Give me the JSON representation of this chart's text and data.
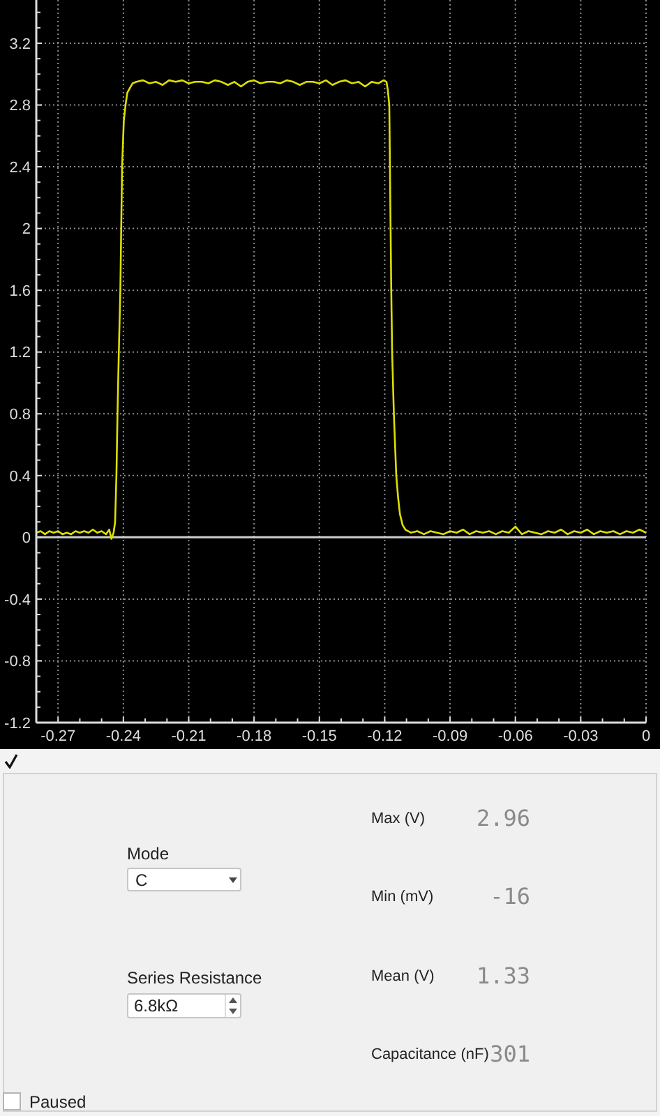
{
  "chart_data": [
    {
      "type": "line",
      "x": [
        -0.28,
        -0.278,
        -0.276,
        -0.274,
        -0.272,
        -0.27,
        -0.268,
        -0.266,
        -0.264,
        -0.262,
        -0.26,
        -0.258,
        -0.256,
        -0.254,
        -0.252,
        -0.25,
        -0.248,
        -0.2465,
        -0.2455,
        -0.2445,
        -0.2438,
        -0.2432,
        -0.2427,
        -0.2421,
        -0.2414,
        -0.241,
        -0.2406,
        -0.2398,
        -0.239,
        -0.2382,
        -0.237,
        -0.2358,
        -0.234,
        -0.231,
        -0.228,
        -0.225,
        -0.222,
        -0.219,
        -0.216,
        -0.213,
        -0.21,
        -0.207,
        -0.204,
        -0.201,
        -0.198,
        -0.195,
        -0.192,
        -0.189,
        -0.186,
        -0.183,
        -0.18,
        -0.177,
        -0.174,
        -0.171,
        -0.168,
        -0.165,
        -0.162,
        -0.159,
        -0.156,
        -0.153,
        -0.15,
        -0.147,
        -0.144,
        -0.141,
        -0.138,
        -0.135,
        -0.132,
        -0.129,
        -0.126,
        -0.123,
        -0.1205,
        -0.1192,
        -0.1186,
        -0.1179,
        -0.1176,
        -0.1173,
        -0.117,
        -0.1166,
        -0.1158,
        -0.1147,
        -0.1138,
        -0.113,
        -0.1118,
        -0.1105,
        -0.108,
        -0.105,
        -0.102,
        -0.099,
        -0.096,
        -0.093,
        -0.09,
        -0.087,
        -0.084,
        -0.081,
        -0.078,
        -0.075,
        -0.072,
        -0.069,
        -0.066,
        -0.063,
        -0.06,
        -0.057,
        -0.054,
        -0.051,
        -0.048,
        -0.045,
        -0.042,
        -0.039,
        -0.036,
        -0.033,
        -0.03,
        -0.027,
        -0.024,
        -0.021,
        -0.018,
        -0.015,
        -0.012,
        -0.009,
        -0.006,
        -0.003,
        0
      ],
      "series": [
        {
          "color": "#dede00",
          "values": [
            0.03,
            0.04,
            0.02,
            0.04,
            0.03,
            0.04,
            0.02,
            0.03,
            0.02,
            0.04,
            0.03,
            0.04,
            0.03,
            0.05,
            0.03,
            0.04,
            0.02,
            0.05,
            -0.01,
            0.03,
            0.1,
            0.4,
            0.8,
            1.2,
            1.6,
            2,
            2.4,
            2.7,
            2.8,
            2.88,
            2.91,
            2.94,
            2.95,
            2.96,
            2.94,
            2.95,
            2.93,
            2.96,
            2.95,
            2.96,
            2.94,
            2.95,
            2.95,
            2.94,
            2.96,
            2.95,
            2.93,
            2.95,
            2.92,
            2.95,
            2.96,
            2.94,
            2.95,
            2.95,
            2.94,
            2.96,
            2.95,
            2.93,
            2.95,
            2.95,
            2.94,
            2.96,
            2.93,
            2.95,
            2.96,
            2.94,
            2.95,
            2.92,
            2.95,
            2.94,
            2.96,
            2.95,
            2.9,
            2.8,
            2.4,
            2,
            1.6,
            1.2,
            0.8,
            0.4,
            0.25,
            0.15,
            0.08,
            0.05,
            0.03,
            0.04,
            0.02,
            0.04,
            0.03,
            0.02,
            0.04,
            0.03,
            0.05,
            0.02,
            0.04,
            0.03,
            0.04,
            0.02,
            0.04,
            0.03,
            0.07,
            0.02,
            0.04,
            0.03,
            0.02,
            0.04,
            0.03,
            0.05,
            0.02,
            0.04,
            0.03,
            0.05,
            0.02,
            0.04,
            0.03,
            0.04,
            0.02,
            0.04,
            0.03,
            0.05,
            0.03
          ]
        }
      ],
      "xlim": [
        -0.28,
        0
      ],
      "ylim": [
        -1.2,
        3.48
      ],
      "xticks": [
        -0.27,
        {
          "value": -0.26,
          "label": null
        },
        {
          "value": -0.25,
          "label": null
        },
        -0.24,
        {
          "value": -0.23,
          "label": null
        },
        {
          "value": -0.22,
          "label": null
        },
        -0.21,
        {
          "value": -0.2,
          "label": null
        },
        {
          "value": -0.19,
          "label": null
        },
        -0.18,
        {
          "value": -0.17,
          "label": null
        },
        {
          "value": -0.16,
          "label": null
        },
        -0.15,
        {
          "value": -0.14,
          "label": null
        },
        {
          "value": -0.13,
          "label": null
        },
        -0.12,
        {
          "value": -0.11,
          "label": null
        },
        {
          "value": -0.1,
          "label": null
        },
        -0.09,
        {
          "value": -0.08,
          "label": null
        },
        {
          "value": -0.07,
          "label": null
        },
        -0.06,
        {
          "value": -0.05,
          "label": null
        },
        {
          "value": -0.04,
          "label": null
        },
        -0.03,
        {
          "value": -0.02,
          "label": null
        },
        {
          "value": -0.01,
          "label": null
        },
        0
      ],
      "yticks": [
        -1.2,
        {
          "value": -1.1,
          "label": null
        },
        {
          "value": -1,
          "label": null
        },
        {
          "value": -0.9,
          "label": null
        },
        -0.8,
        {
          "value": -0.7,
          "label": null
        },
        {
          "value": -0.6,
          "label": null
        },
        {
          "value": -0.5,
          "label": null
        },
        -0.4,
        {
          "value": -0.3,
          "label": null
        },
        {
          "value": -0.2,
          "label": null
        },
        {
          "value": -0.1,
          "label": null
        },
        0,
        {
          "value": 0.1,
          "label": null
        },
        {
          "value": 0.2,
          "label": null
        },
        {
          "value": 0.3,
          "label": null
        },
        0.4,
        {
          "value": 0.5,
          "label": null
        },
        {
          "value": 0.6,
          "label": null
        },
        {
          "value": 0.7,
          "label": null
        },
        0.8,
        {
          "value": 0.9,
          "label": null
        },
        {
          "value": 1,
          "label": null
        },
        {
          "value": 1.1,
          "label": null
        },
        1.2,
        {
          "value": 1.3,
          "label": null
        },
        {
          "value": 1.4,
          "label": null
        },
        {
          "value": 1.5,
          "label": null
        },
        1.6,
        {
          "value": 1.7,
          "label": null
        },
        {
          "value": 1.8,
          "label": null
        },
        {
          "value": 1.9,
          "label": null
        },
        2,
        {
          "value": 2.1,
          "label": null
        },
        {
          "value": 2.2,
          "label": null
        },
        {
          "value": 2.3,
          "label": null
        },
        2.4,
        {
          "value": 2.5,
          "label": null
        },
        {
          "value": 2.6,
          "label": null
        },
        {
          "value": 2.7,
          "label": null
        },
        2.8,
        {
          "value": 2.9,
          "label": null
        },
        {
          "value": 3,
          "label": null
        },
        {
          "value": 3.1,
          "label": null
        },
        3.2,
        {
          "value": 3.3,
          "label": null
        },
        {
          "value": 3.4,
          "label": null
        }
      ],
      "grid": true,
      "marker": "none",
      "ref_lines": [
        {
          "axis": "y",
          "value": 0,
          "color": "#d0d0d0"
        }
      ]
    },
    {
      "type": "other",
      "categories": [
        "Max (V)",
        "Min (mV)",
        "Mean (V)",
        "Capacitance (nF)"
      ],
      "values": [
        2.96,
        -16,
        1.33,
        301
      ],
      "data_labels": true,
      "annotations": [
        "Mode",
        "C",
        "Series Resistance",
        "6.8kΩ",
        "Paused"
      ]
    }
  ]
}
